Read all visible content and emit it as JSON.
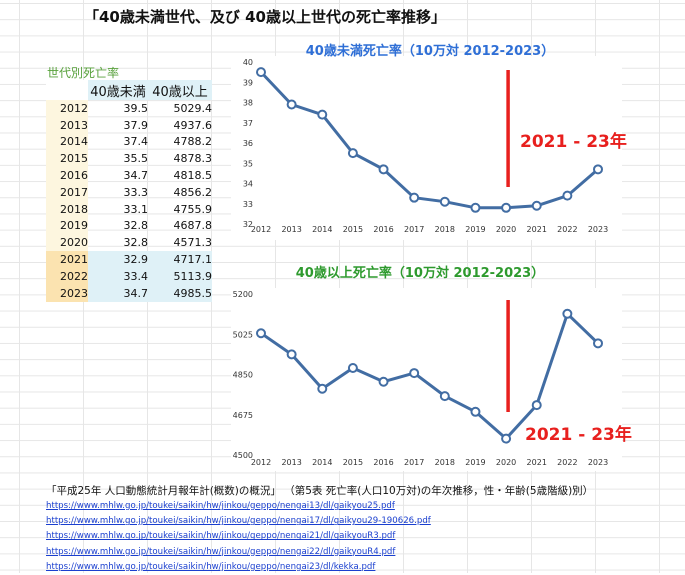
{
  "title": "「40歳未満世代、及び 40歳以上世代の死亡率推移」",
  "table": {
    "title": "世代別死亡率",
    "headers": [
      "",
      "40歳未満",
      "40歳以上"
    ],
    "rows": [
      {
        "year": "2012",
        "under40": "39.5",
        "over40": "5029.4"
      },
      {
        "year": "2013",
        "under40": "37.9",
        "over40": "4937.6"
      },
      {
        "year": "2014",
        "under40": "37.4",
        "over40": "4788.2"
      },
      {
        "year": "2015",
        "under40": "35.5",
        "over40": "4878.3"
      },
      {
        "year": "2016",
        "under40": "34.7",
        "over40": "4818.5"
      },
      {
        "year": "2017",
        "under40": "33.3",
        "over40": "4856.2"
      },
      {
        "year": "2018",
        "under40": "33.1",
        "over40": "4755.9"
      },
      {
        "year": "2019",
        "under40": "32.8",
        "over40": "4687.8"
      },
      {
        "year": "2020",
        "under40": "32.8",
        "over40": "4571.3"
      },
      {
        "year": "2021",
        "under40": "32.9",
        "over40": "4717.1",
        "highlight": true
      },
      {
        "year": "2022",
        "under40": "33.4",
        "over40": "5113.9",
        "highlight": true
      },
      {
        "year": "2023",
        "under40": "34.7",
        "over40": "4985.5",
        "highlight": true
      }
    ]
  },
  "chart_data": [
    {
      "type": "line",
      "title": "40歳未満死亡率（10万対 2012-2023）",
      "title_color": "#2f6fd6",
      "x": [
        2012,
        2013,
        2014,
        2015,
        2016,
        2017,
        2018,
        2019,
        2020,
        2021,
        2022,
        2023
      ],
      "series": [
        {
          "values": [
            39.5,
            37.9,
            37.4,
            35.5,
            34.7,
            33.3,
            33.1,
            32.8,
            32.8,
            32.9,
            33.4,
            34.7
          ],
          "color": "#426da3"
        }
      ],
      "ylim": [
        32,
        40
      ],
      "yticks": [
        32,
        33,
        34,
        35,
        36,
        37,
        38,
        39,
        40
      ],
      "grid": false,
      "annotation": {
        "text": "2021 - 23年",
        "marker_x": 2020.0,
        "color": "#e8201e"
      }
    },
    {
      "type": "line",
      "title": "40歳以上死亡率（10万対 2012-2023）",
      "title_color": "#2e9a2e",
      "x": [
        2012,
        2013,
        2014,
        2015,
        2016,
        2017,
        2018,
        2019,
        2020,
        2021,
        2022,
        2023
      ],
      "series": [
        {
          "values": [
            5029.4,
            4937.6,
            4788.2,
            4878.3,
            4818.5,
            4856.2,
            4755.9,
            4687.8,
            4571.3,
            4717.1,
            5113.9,
            4985.5
          ],
          "color": "#426da3"
        }
      ],
      "ylim": [
        4500,
        5200
      ],
      "yticks": [
        4500,
        4675,
        4850,
        5025,
        5200
      ],
      "grid": false,
      "annotation": {
        "text": "2021 - 23年",
        "marker_x": 2020.0,
        "color": "#e8201e"
      }
    }
  ],
  "source": "「平成25年 人口動態統計月報年計(概数)の概況」 （第5表 死亡率(人口10万対)の年次推移，性・年齢(5歳階級)別）",
  "links": [
    "https://www.mhlw.go.jp/toukei/saikin/hw/jinkou/geppo/nengai13/dl/gaikyou25.pdf",
    "https://www.mhlw.go.jp/toukei/saikin/hw/jinkou/geppo/nengai17/dl/gaikyou29-190626.pdf",
    "https://www.mhlw.go.jp/toukei/saikin/hw/jinkou/geppo/nengai21/dl/gaikyouR3.pdf",
    "https://www.mhlw.go.jp/toukei/saikin/hw/jinkou/geppo/nengai22/dl/gaikyouR4.pdf",
    "https://www.mhlw.go.jp/toukei/saikin/hw/jinkou/geppo/nengai23/dl/kekka.pdf"
  ]
}
